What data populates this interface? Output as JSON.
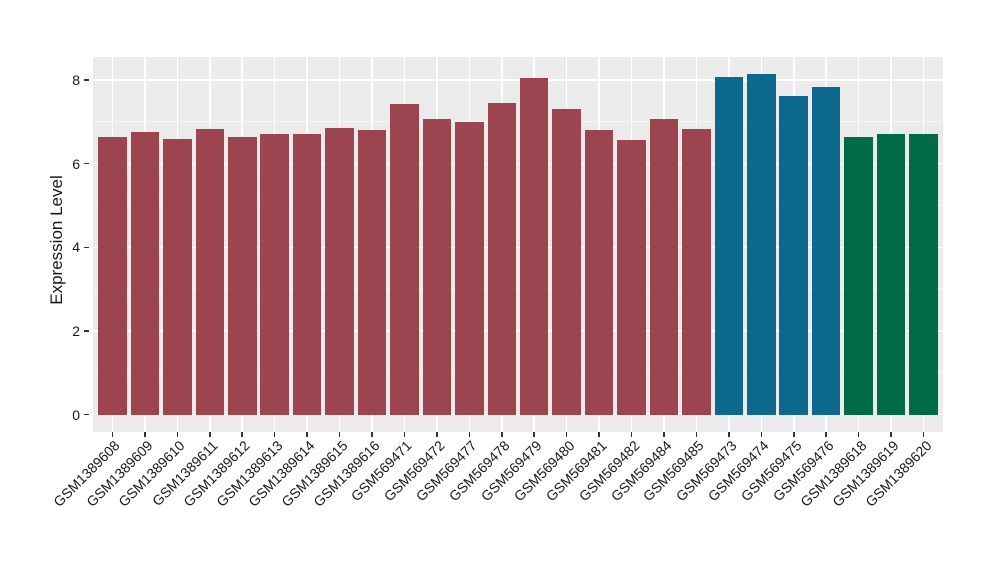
{
  "figure": {
    "background": "#FFFFFF",
    "panel_background": "#EBEBEB",
    "grid_major_color": "#FFFFFF",
    "grid_minor_color": "#F6F6F6",
    "axis_text_color": "#1A1A1A",
    "axis_tick_color": "#333333"
  },
  "chart_data": {
    "type": "bar",
    "title": "",
    "xlabel": "",
    "ylabel": "Expression Level",
    "ylim": [
      0,
      8.5
    ],
    "yticks": [
      0,
      2,
      4,
      6,
      8
    ],
    "yticks_minor": [
      1,
      3,
      5,
      7
    ],
    "grid": "horizontal major+minor white lines, vertical major line at each category center",
    "legend": "none",
    "x_label_rotation_deg": 45,
    "categories": [
      "GSM1389608",
      "GSM1389609",
      "GSM1389610",
      "GSM1389611",
      "GSM1389612",
      "GSM1389613",
      "GSM1389614",
      "GSM1389615",
      "GSM1389616",
      "GSM569471",
      "GSM569472",
      "GSM569477",
      "GSM569478",
      "GSM569479",
      "GSM569480",
      "GSM569481",
      "GSM569482",
      "GSM569484",
      "GSM569485",
      "GSM569473",
      "GSM569474",
      "GSM569475",
      "GSM569476",
      "GSM1389618",
      "GSM1389619",
      "GSM1389620"
    ],
    "values": [
      6.63,
      6.75,
      6.6,
      6.82,
      6.64,
      6.7,
      6.72,
      6.86,
      6.8,
      7.42,
      7.08,
      7.0,
      7.45,
      8.04,
      7.3,
      6.81,
      6.57,
      7.06,
      6.83,
      8.08,
      8.14,
      7.63,
      7.83,
      6.65,
      6.7,
      6.7
    ],
    "bar_groups": [
      "maroon",
      "maroon",
      "maroon",
      "maroon",
      "maroon",
      "maroon",
      "maroon",
      "maroon",
      "maroon",
      "maroon",
      "maroon",
      "maroon",
      "maroon",
      "maroon",
      "maroon",
      "maroon",
      "maroon",
      "maroon",
      "maroon",
      "blue",
      "blue",
      "blue",
      "blue",
      "green",
      "green",
      "green"
    ],
    "group_colors": {
      "maroon": "#9C4450",
      "blue": "#0D688E",
      "green": "#016B46"
    }
  }
}
